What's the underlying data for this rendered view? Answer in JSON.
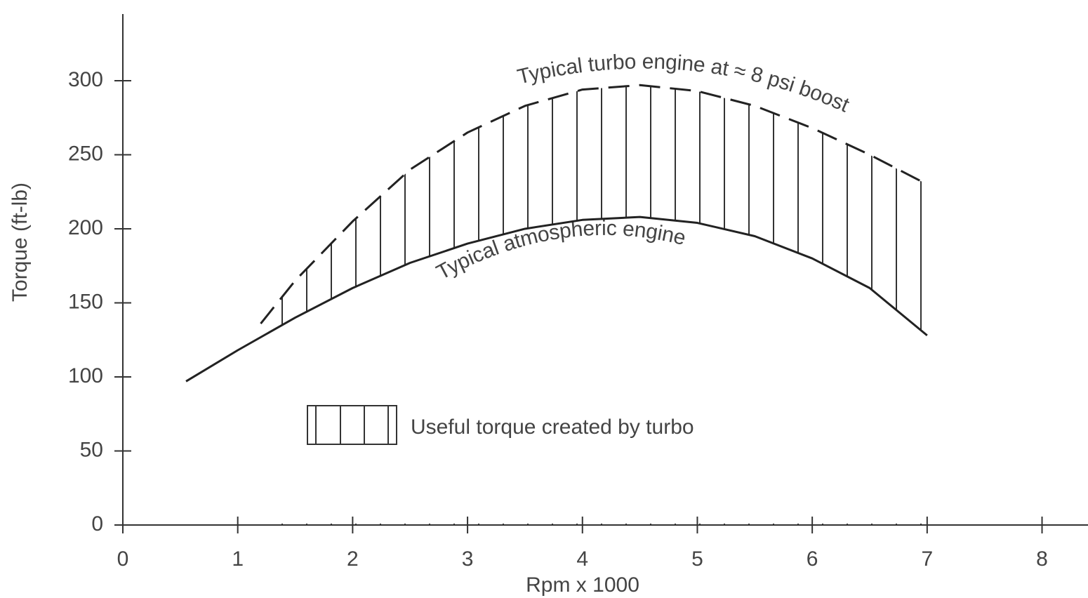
{
  "chart_data": {
    "type": "line",
    "xlabel": "Rpm x 1000",
    "ylabel": "Torque (ft-lb)",
    "xlim": [
      0,
      8.4
    ],
    "ylim": [
      0,
      345
    ],
    "xticks": [
      0,
      1,
      2,
      3,
      4,
      5,
      6,
      7,
      8
    ],
    "yticks": [
      0,
      50,
      100,
      150,
      200,
      250,
      300
    ],
    "series": [
      {
        "name": "Typical atmospheric engine",
        "color": "#222222",
        "dash": false,
        "x": [
          0.55,
          1,
          1.5,
          2,
          2.5,
          3,
          3.5,
          4,
          4.5,
          5,
          5.5,
          6,
          6.5,
          7
        ],
        "values": [
          97,
          118,
          140,
          160,
          177,
          190,
          200,
          206,
          208,
          204,
          195,
          180,
          160,
          128
        ]
      },
      {
        "name": "Typical turbo engine at ≈ 8 psi boost",
        "color": "#222222",
        "dash": true,
        "x": [
          1.2,
          1.5,
          2,
          2.5,
          3,
          3.5,
          4,
          4.5,
          5,
          5.5,
          6,
          6.5,
          7
        ],
        "values": [
          136,
          165,
          205,
          240,
          265,
          283,
          294,
          297,
          293,
          283,
          268,
          250,
          230
        ]
      }
    ],
    "legend": "Useful torque created by turbo"
  }
}
